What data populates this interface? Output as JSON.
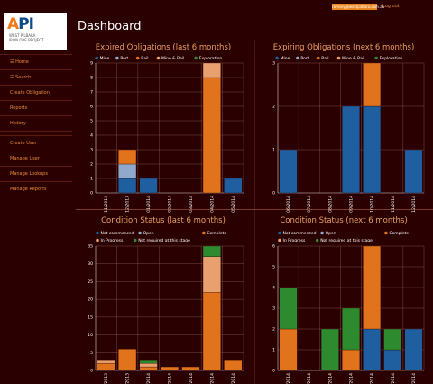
{
  "colors": {
    "mine": "#1f5fa0",
    "port": "#8fa8cc",
    "rail": "#e0731c",
    "mine_rail": "#e8a06e",
    "exploration": "#2e8a2e",
    "not_commenced": "#1f5fa0",
    "open": "#8fa8cc",
    "complete": "#e0731c",
    "in_progress": "#e8a06e",
    "not_required": "#2e8a2e"
  },
  "header": {
    "email": "ramsey@westpilbara.com.au",
    "logout": "Log out"
  },
  "logo": {
    "mark_a": "A",
    "mark_rest": "PI",
    "sub1": "WEST PILBARA",
    "sub2": "IRON ORE PROJECT"
  },
  "page": {
    "title": "Dashboard"
  },
  "sidebar": {
    "items": [
      {
        "label": "Home",
        "icon": "home-icon"
      },
      {
        "label": "Search",
        "icon": "search-icon"
      },
      {
        "label": "Create Obligation"
      },
      {
        "label": "Reports"
      },
      {
        "label": "History"
      },
      {
        "label": "Create User"
      },
      {
        "label": "Manage User"
      },
      {
        "label": "Manage Lookups"
      },
      {
        "label": "Manage Reports"
      }
    ]
  },
  "chart_data": [
    {
      "type": "bar",
      "stacked": true,
      "title": "Expired Obligations (last 6 months)",
      "categories": [
        "11/2013",
        "12/2013",
        "01/2014",
        "02/2014",
        "03/2014",
        "04/2014",
        "05/2014"
      ],
      "ylim": [
        0,
        9
      ],
      "yticks": [
        0,
        1,
        2,
        3,
        4,
        5,
        6,
        7,
        8,
        9
      ],
      "legend_position": "top",
      "series": [
        {
          "name": "Mine",
          "color": "#1f5fa0",
          "values": [
            0,
            1,
            1,
            0,
            0,
            0,
            1
          ]
        },
        {
          "name": "Port",
          "color": "#8fa8cc",
          "values": [
            0,
            1,
            0,
            0,
            0,
            0,
            0
          ]
        },
        {
          "name": "Rail",
          "color": "#e0731c",
          "values": [
            0,
            1,
            0,
            0,
            0,
            8,
            0
          ]
        },
        {
          "name": "Mine & Rail",
          "color": "#e8a06e",
          "values": [
            0,
            0,
            0,
            0,
            0,
            1,
            0
          ]
        },
        {
          "name": "Exploration",
          "color": "#2e8a2e",
          "values": [
            0,
            0,
            0,
            0,
            0,
            0,
            0
          ]
        }
      ]
    },
    {
      "type": "bar",
      "stacked": true,
      "title": "Expiring Obligations (next 6 months)",
      "categories": [
        "06/2014",
        "07/2014",
        "08/2014",
        "09/2014",
        "10/2014",
        "11/2014",
        "12/2014"
      ],
      "ylim": [
        0,
        3
      ],
      "yticks": [
        0,
        1,
        2,
        3
      ],
      "legend_position": "top",
      "series": [
        {
          "name": "Mine",
          "color": "#1f5fa0",
          "values": [
            1,
            0,
            0,
            2,
            2,
            0,
            1
          ]
        },
        {
          "name": "Port",
          "color": "#8fa8cc",
          "values": [
            0,
            0,
            0,
            0,
            0,
            0,
            0
          ]
        },
        {
          "name": "Rail",
          "color": "#e0731c",
          "values": [
            0,
            0,
            0,
            0,
            1,
            0,
            0
          ]
        },
        {
          "name": "Mine & Rail",
          "color": "#e8a06e",
          "values": [
            0,
            0,
            0,
            0,
            0,
            0,
            0
          ]
        },
        {
          "name": "Exploration",
          "color": "#2e8a2e",
          "values": [
            0,
            0,
            0,
            0,
            0,
            0,
            0
          ]
        }
      ]
    },
    {
      "type": "bar",
      "stacked": true,
      "title": "Condition Status (last 6 months)",
      "categories": [
        "11/2013",
        "12/2013",
        "01/2014",
        "02/2014",
        "03/2014",
        "04/2014",
        "05/2014"
      ],
      "ylim": [
        0,
        35
      ],
      "yticks": [
        0,
        5,
        10,
        15,
        20,
        25,
        30,
        35
      ],
      "legend_position": "top",
      "series": [
        {
          "name": "Not commenced",
          "color": "#1f5fa0",
          "values": [
            0,
            0,
            0,
            0,
            0,
            0,
            0
          ]
        },
        {
          "name": "Open",
          "color": "#8fa8cc",
          "values": [
            0,
            0,
            0,
            0,
            0,
            0,
            0
          ]
        },
        {
          "name": "Complete",
          "color": "#e0731c",
          "values": [
            2,
            6,
            1,
            1,
            1,
            22,
            3
          ]
        },
        {
          "name": "In Progress",
          "color": "#e8a06e",
          "values": [
            1,
            0,
            1,
            0,
            0,
            10,
            0
          ]
        },
        {
          "name": "Not required at this stage",
          "color": "#2e8a2e",
          "values": [
            0,
            0,
            1,
            0,
            0,
            3,
            0
          ]
        }
      ]
    },
    {
      "type": "bar",
      "stacked": true,
      "title": "Condition Status (next 6 months)",
      "categories": [
        "06/2014",
        "07/2014",
        "08/2014",
        "09/2014",
        "10/2014",
        "11/2014",
        "12/2014"
      ],
      "ylim": [
        0,
        6
      ],
      "yticks": [
        0,
        1,
        2,
        3,
        4,
        5,
        6
      ],
      "legend_position": "top",
      "series": [
        {
          "name": "Not commenced",
          "color": "#1f5fa0",
          "values": [
            0,
            0,
            0,
            0,
            2,
            1,
            2
          ]
        },
        {
          "name": "Open",
          "color": "#8fa8cc",
          "values": [
            0,
            0,
            0,
            0,
            0,
            0,
            0
          ]
        },
        {
          "name": "Complete",
          "color": "#e0731c",
          "values": [
            2,
            0,
            0,
            1,
            4,
            0,
            0
          ]
        },
        {
          "name": "In Progress",
          "color": "#e8a06e",
          "values": [
            0,
            0,
            0,
            0,
            0,
            0,
            0
          ]
        },
        {
          "name": "Not required at this stage",
          "color": "#2e8a2e",
          "values": [
            2,
            0,
            2,
            2,
            0,
            1,
            0
          ]
        }
      ]
    }
  ]
}
